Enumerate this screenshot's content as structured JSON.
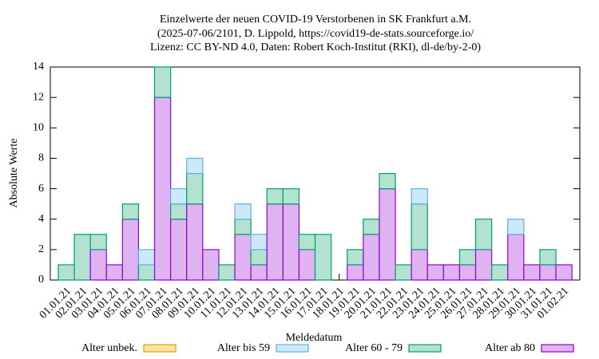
{
  "chart_data": {
    "type": "bar",
    "stacked": true,
    "title": [
      "Einzelwerte der neuen COVID-19 Verstorbenen in SK Frankfurt a.M.",
      "(2025-07-06/2101, D. Lippold, https://covid19-de-stats.sourceforge.io/",
      "Lizenz: CC BY-ND 4.0, Daten: Robert Koch-Institut (RKI), dl-de/by-2-0)"
    ],
    "x_label": "Meldedatum",
    "y_label": "Absolute Werte",
    "categories": [
      "01.01.21",
      "02.01.21",
      "03.01.21",
      "04.01.21",
      "05.01.21",
      "06.01.21",
      "07.01.21",
      "08.01.21",
      "09.01.21",
      "10.01.21",
      "11.01.21",
      "12.01.21",
      "13.01.21",
      "14.01.21",
      "15.01.21",
      "16.01.21",
      "17.01.21",
      "18.01.21",
      "19.01.21",
      "20.01.21",
      "21.01.21",
      "22.01.21",
      "23.01.21",
      "24.01.21",
      "25.01.21",
      "26.01.21",
      "27.01.21",
      "28.01.21",
      "29.01.21",
      "30.01.21",
      "31.01.21",
      "01.02.21"
    ],
    "series": [
      {
        "name": "Alter unbek.",
        "color": "#e6a000",
        "fill": "#fbe3a4",
        "values": [
          0,
          0,
          0,
          0,
          0,
          0,
          0,
          0,
          0,
          0,
          0,
          0,
          0,
          0,
          0,
          0,
          0,
          0,
          0,
          0,
          0,
          0,
          0,
          0,
          0,
          0,
          0,
          0,
          0,
          0,
          0,
          0
        ]
      },
      {
        "name": "Alter bis 59",
        "color": "#56b4e9",
        "fill": "#cde8f8",
        "values": [
          0,
          0,
          0,
          0,
          0,
          1,
          0,
          1,
          1,
          0,
          0,
          1,
          1,
          0,
          0,
          0,
          0,
          0,
          0,
          0,
          0,
          0,
          1,
          0,
          0,
          0,
          0,
          0,
          1,
          0,
          0,
          0
        ]
      },
      {
        "name": "Alter 60 - 79",
        "color": "#009e73",
        "fill": "#b3e2d0",
        "values": [
          1,
          3,
          1,
          0,
          1,
          1,
          2,
          1,
          2,
          0,
          1,
          1,
          1,
          1,
          1,
          1,
          3,
          0,
          1,
          1,
          1,
          1,
          3,
          0,
          0,
          1,
          2,
          1,
          0,
          0,
          1,
          0
        ]
      },
      {
        "name": "Alter ab 80",
        "color": "#9400d3",
        "fill": "#dfb3f2",
        "values": [
          0,
          0,
          2,
          1,
          4,
          0,
          12,
          4,
          5,
          2,
          0,
          3,
          1,
          5,
          5,
          2,
          0,
          0,
          1,
          3,
          6,
          0,
          2,
          1,
          1,
          1,
          2,
          0,
          3,
          1,
          1,
          1
        ]
      }
    ],
    "stack_order": [
      3,
      2,
      1,
      0
    ],
    "ylim": [
      0,
      14
    ],
    "yticks": [
      0,
      2,
      4,
      6,
      8,
      10,
      12,
      14
    ],
    "grid": false,
    "legend": "bottom"
  }
}
